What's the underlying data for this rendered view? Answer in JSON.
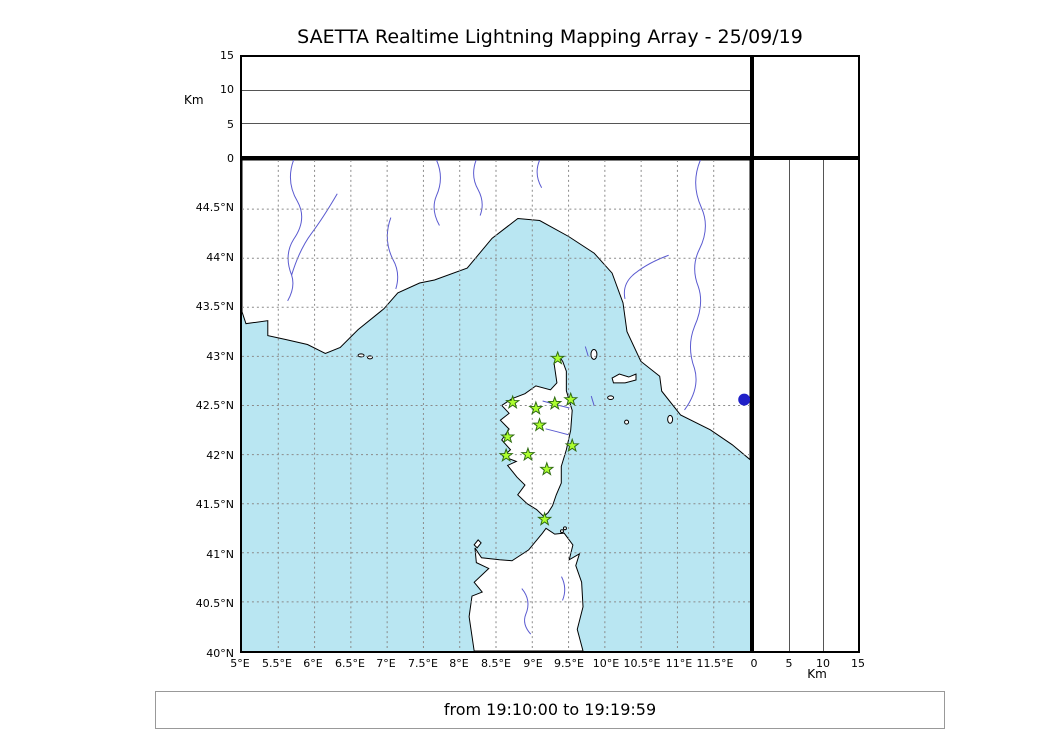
{
  "title": "SAETTA Realtime Lightning Mapping Array - 25/09/19",
  "status": {
    "text": "from 19:10:00 to 19:19:59"
  },
  "colors": {
    "sea": "#b9e6f2",
    "land": "#ffffff",
    "coast": "#000000",
    "river": "#5a5ad0",
    "grid": "#8a8a8a",
    "station_fill": "#adff2f",
    "station_stroke": "#2f6b12",
    "detection": "#2020c8"
  },
  "top_panel": {
    "y_ticks": [
      "15",
      "10",
      "5",
      "0"
    ],
    "axis_label": "Km"
  },
  "right_panel": {
    "x_ticks": [
      "0",
      "5",
      "10",
      "15"
    ],
    "axis_label": "Km"
  },
  "map": {
    "x_ticks": [
      "5°E",
      "5.5°E",
      "6°E",
      "6.5°E",
      "7°E",
      "7.5°E",
      "8°E",
      "8.5°E",
      "9°E",
      "9.5°E",
      "10°E",
      "10.5°E",
      "11°E",
      "11.5°E"
    ],
    "y_ticks": [
      "44.5°N",
      "44°N",
      "43.5°N",
      "43°N",
      "42.5°N",
      "42°N",
      "41.5°N",
      "41°N",
      "40.5°N",
      "40°N"
    ]
  },
  "chart_data": {
    "type": "scatter",
    "title": "SAETTA Realtime Lightning Mapping Array - 25/09/19",
    "time_window": {
      "from": "19:10:00",
      "to": "19:19:59"
    },
    "map_extent": {
      "lon_min": 5,
      "lon_max": 12,
      "lat_min": 40,
      "lat_max": 45
    },
    "grid_step_deg": 0.5,
    "altitude_axis": {
      "unit": "Km",
      "min": 0,
      "max": 15,
      "ticks": [
        0,
        5,
        10,
        15
      ]
    },
    "stations_marker": "star",
    "stations": [
      {
        "lon": 9.35,
        "lat": 42.98
      },
      {
        "lon": 8.73,
        "lat": 42.53
      },
      {
        "lon": 9.05,
        "lat": 42.47
      },
      {
        "lon": 9.31,
        "lat": 42.52
      },
      {
        "lon": 9.53,
        "lat": 42.56
      },
      {
        "lon": 9.1,
        "lat": 42.3
      },
      {
        "lon": 8.66,
        "lat": 42.18
      },
      {
        "lon": 8.64,
        "lat": 41.99
      },
      {
        "lon": 8.94,
        "lat": 42.0
      },
      {
        "lon": 9.2,
        "lat": 41.85
      },
      {
        "lon": 9.55,
        "lat": 42.09
      },
      {
        "lon": 9.17,
        "lat": 41.34
      }
    ],
    "detections_marker": "circle",
    "detections": [
      {
        "lon": 11.92,
        "lat": 42.56
      }
    ]
  }
}
